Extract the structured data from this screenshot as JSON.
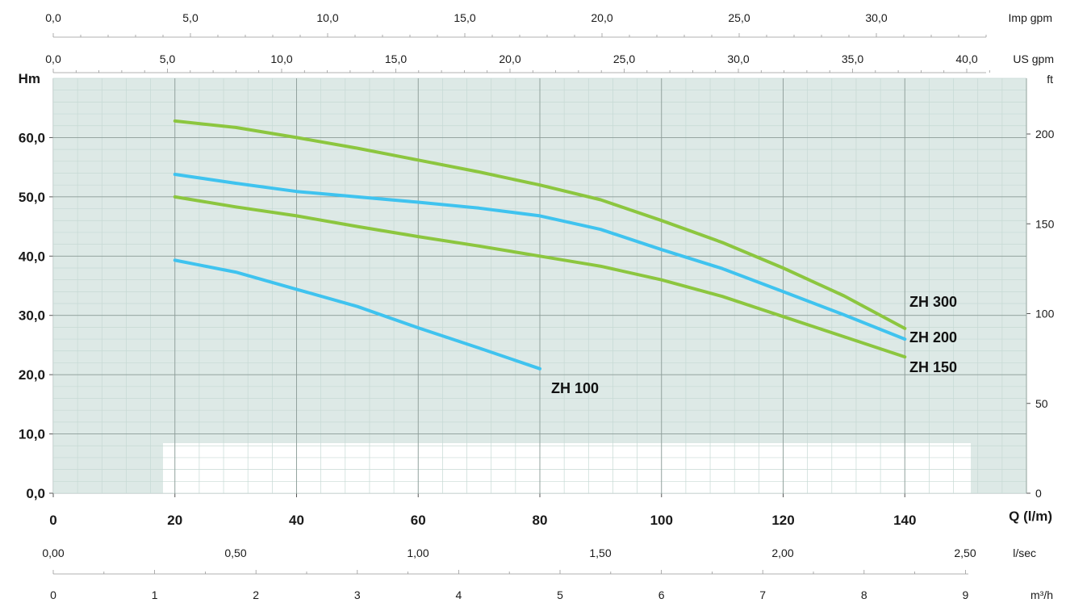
{
  "chart_data": {
    "type": "line",
    "xlabel": "Q (l/m)",
    "ylabel": "Hm",
    "y2label": "ft",
    "xlim": [
      0,
      160
    ],
    "ylim": [
      0,
      70
    ],
    "x_ticks": [
      "0",
      "20",
      "40",
      "60",
      "80",
      "100",
      "120",
      "140"
    ],
    "y_ticks": [
      "0,0",
      "10,0",
      "20,0",
      "30,0",
      "40,0",
      "50,0",
      "60,0"
    ],
    "ft_ticks": [
      "0",
      "50",
      "100",
      "150",
      "200"
    ],
    "imp_gpm": {
      "label": "Imp gpm",
      "ticks": [
        "0,0",
        "5,0",
        "10,0",
        "15,0",
        "20,0",
        "25,0",
        "30,0"
      ]
    },
    "us_gpm": {
      "label": "US gpm",
      "ticks": [
        "0,0",
        "5,0",
        "10,0",
        "15,0",
        "20,0",
        "25,0",
        "30,0",
        "35,0",
        "40,0"
      ]
    },
    "l_sec": {
      "label": "l/sec",
      "ticks": [
        "0,00",
        "0,50",
        "1,00",
        "1,50",
        "2,00",
        "2,50"
      ]
    },
    "m3h": {
      "label": "m³/h",
      "ticks": [
        "0",
        "1",
        "2",
        "3",
        "4",
        "5",
        "6",
        "7",
        "8",
        "9"
      ]
    },
    "grid": true,
    "colors": {
      "plot_bg": "#dde9e6",
      "green": "#8cc63f",
      "blue": "#3fc3ef"
    },
    "series": [
      {
        "name": "ZH 300",
        "color": "#8cc63f",
        "x": [
          20,
          30,
          40,
          50,
          60,
          70,
          80,
          90,
          100,
          110,
          120,
          130,
          140
        ],
        "y": [
          62.8,
          61.7,
          60.0,
          58.2,
          56.2,
          54.2,
          52.0,
          49.5,
          46.0,
          42.3,
          38.0,
          33.3,
          27.8
        ]
      },
      {
        "name": "ZH 200",
        "color": "#3fc3ef",
        "x": [
          20,
          30,
          40,
          50,
          60,
          70,
          80,
          90,
          100,
          110,
          120,
          130,
          140
        ],
        "y": [
          53.8,
          52.3,
          50.9,
          50.0,
          49.1,
          48.1,
          46.8,
          44.5,
          41.1,
          37.9,
          34.0,
          30.1,
          26.0
        ]
      },
      {
        "name": "ZH 150",
        "color": "#8cc63f",
        "x": [
          20,
          30,
          40,
          50,
          60,
          70,
          80,
          90,
          100,
          110,
          120,
          130,
          140
        ],
        "y": [
          50.0,
          48.3,
          46.8,
          45.0,
          43.3,
          41.7,
          40.0,
          38.3,
          36.0,
          33.2,
          29.8,
          26.4,
          23.0
        ]
      },
      {
        "name": "ZH 100",
        "color": "#3fc3ef",
        "x": [
          20,
          30,
          40,
          50,
          60,
          70,
          80
        ],
        "y": [
          39.3,
          37.3,
          34.4,
          31.5,
          27.9,
          24.5,
          21.0
        ]
      }
    ]
  }
}
